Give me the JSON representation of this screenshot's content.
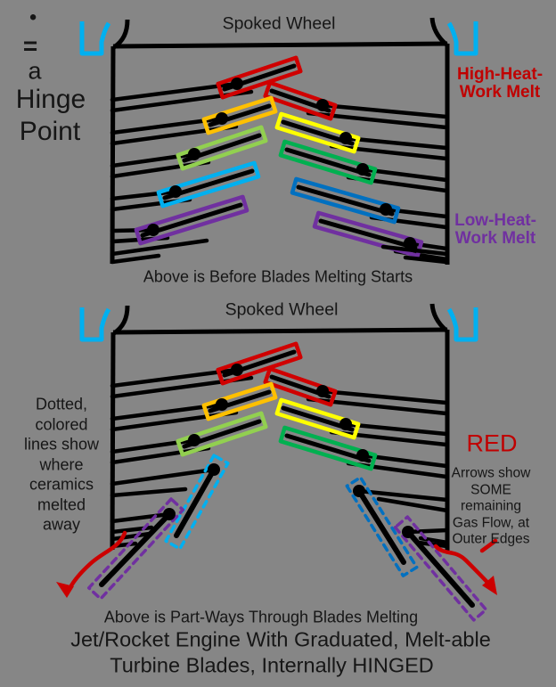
{
  "colors": {
    "background": "#868686",
    "ink": "#000000",
    "text": "#161616",
    "red": "#D00000",
    "label_red": "#C00000",
    "orange": "#FFC000",
    "yellow": "#FFFF00",
    "light_green": "#92D050",
    "green": "#00B050",
    "cyan": "#00B0F0",
    "blue": "#0070C0",
    "purple": "#7030A0",
    "arrow_red": "#CC0000",
    "bracket_blue": "#00B0F0"
  },
  "legend": {
    "symbol": "●",
    "equals": "=",
    "line1": "a",
    "line2": "Hinge",
    "line3": "Point"
  },
  "diagram1": {
    "title": "Spoked Wheel",
    "high_heat_label": [
      "High-Heat-",
      "Work Melt"
    ],
    "low_heat_label": [
      "Low-Heat-",
      "Work Melt"
    ],
    "caption": "Above is Before Blades Melting Starts",
    "left_blades": [
      "red",
      "orange",
      "light_green",
      "cyan",
      "purple"
    ],
    "right_blades": [
      "red",
      "yellow",
      "green",
      "blue",
      "purple"
    ]
  },
  "diagram2": {
    "title": "Spoked Wheel",
    "left_note_lines": [
      "Dotted,",
      "colored",
      "lines show",
      "where",
      "ceramics",
      "melted",
      "away"
    ],
    "right_note_heading": "RED",
    "right_note_lines": [
      "Arrows show",
      "SOME",
      "remaining",
      "Gas Flow, at",
      "Outer Edges"
    ],
    "caption": "Above is Part-Ways Through Blades Melting",
    "intact_left_blades": [
      "red",
      "orange",
      "light_green"
    ],
    "intact_right_blades": [
      "red",
      "yellow",
      "green"
    ],
    "melted_left_blades": [
      "cyan",
      "purple"
    ],
    "melted_right_blades": [
      "blue",
      "purple"
    ]
  },
  "footer": {
    "line1": "Jet/Rocket Engine With Graduated, Melt-able",
    "line2": "Turbine Blades, Internally HINGED"
  }
}
